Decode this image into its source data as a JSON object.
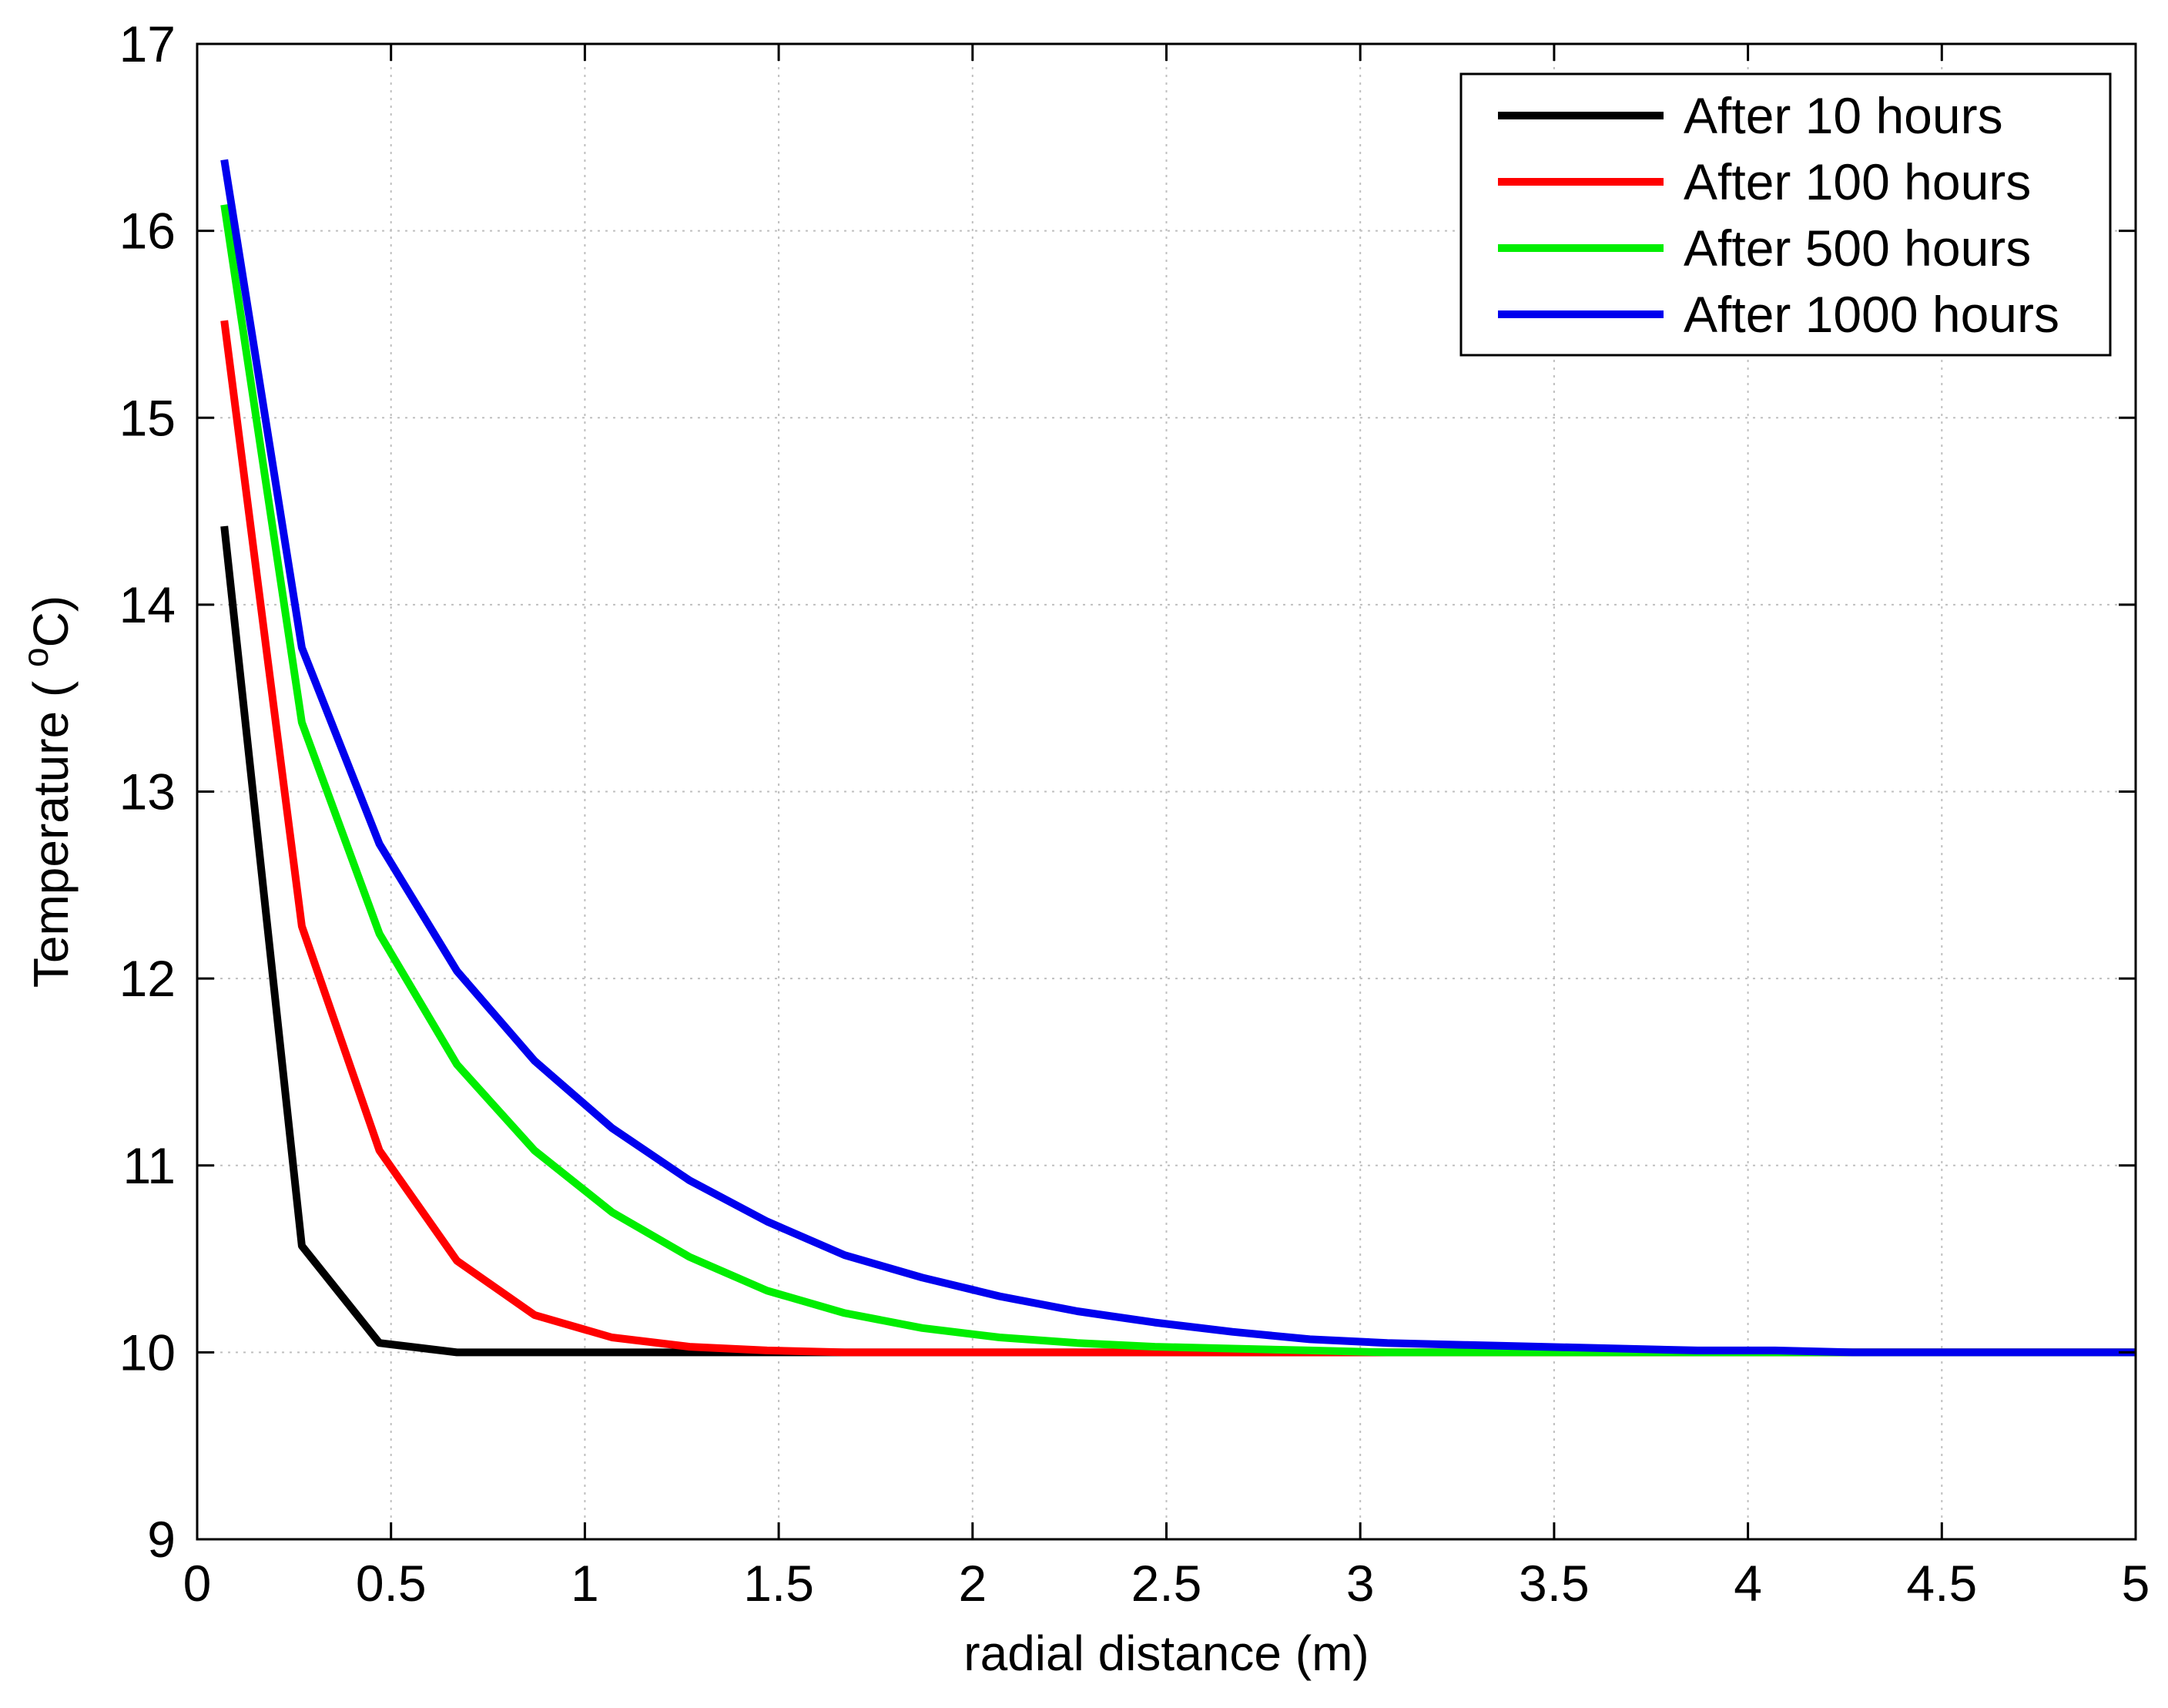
{
  "chart_data": {
    "type": "line",
    "title": "",
    "xlabel": "radial distance (m)",
    "ylabel": {
      "prefix": "Temperature ( ",
      "superscript": "o",
      "suffix": "C)"
    },
    "xlim": [
      0,
      5
    ],
    "ylim": [
      9,
      17
    ],
    "xticks": [
      0,
      0.5,
      1,
      1.5,
      2,
      2.5,
      3,
      3.5,
      4,
      4.5,
      5
    ],
    "xtick_labels": [
      "0",
      "0.5",
      "1",
      "1.5",
      "2",
      "2.5",
      "3",
      "3.5",
      "4",
      "4.5",
      "5"
    ],
    "yticks": [
      9,
      10,
      11,
      12,
      13,
      14,
      15,
      16,
      17
    ],
    "ytick_labels": [
      "9",
      "10",
      "11",
      "12",
      "13",
      "14",
      "15",
      "16",
      "17"
    ],
    "grid": true,
    "legend_position": "top-right",
    "x": [
      0.07,
      0.27,
      0.47,
      0.67,
      0.87,
      1.07,
      1.27,
      1.47,
      1.67,
      1.87,
      2.07,
      2.27,
      2.47,
      2.67,
      2.87,
      3.07,
      3.27,
      3.47,
      3.67,
      3.87,
      4.07,
      4.27,
      4.47,
      4.67,
      4.87,
      5.0
    ],
    "series": [
      {
        "name": "After 10 hours",
        "color": "#000000",
        "values": [
          14.42,
          10.57,
          10.05,
          10.0,
          10.0,
          10.0,
          10.0,
          10.0,
          10.0,
          10.0,
          10.0,
          10.0,
          10.0,
          10.0,
          10.0,
          10.0,
          10.0,
          10.0,
          10.0,
          10.0,
          10.0,
          10.0,
          10.0,
          10.0,
          10.0,
          10.0
        ]
      },
      {
        "name": "After 100 hours",
        "color": "#ff0000",
        "values": [
          15.52,
          12.28,
          11.08,
          10.49,
          10.2,
          10.08,
          10.03,
          10.01,
          10.0,
          10.0,
          10.0,
          10.0,
          10.0,
          10.0,
          10.0,
          10.0,
          10.0,
          10.0,
          10.0,
          10.0,
          10.0,
          10.0,
          10.0,
          10.0,
          10.0,
          10.0
        ]
      },
      {
        "name": "After 500 hours",
        "color": "#00ee00",
        "values": [
          16.14,
          13.37,
          12.24,
          11.54,
          11.08,
          10.75,
          10.51,
          10.33,
          10.21,
          10.13,
          10.08,
          10.05,
          10.03,
          10.02,
          10.01,
          10.0,
          10.0,
          10.0,
          10.0,
          10.0,
          10.0,
          10.0,
          10.0,
          10.0,
          10.0,
          10.0
        ]
      },
      {
        "name": "After 1000 hours",
        "color": "#0000ee",
        "values": [
          16.38,
          13.77,
          12.72,
          12.04,
          11.56,
          11.2,
          10.92,
          10.7,
          10.52,
          10.4,
          10.3,
          10.22,
          10.16,
          10.11,
          10.07,
          10.05,
          10.04,
          10.03,
          10.02,
          10.01,
          10.01,
          10.0,
          10.0,
          10.0,
          10.0,
          10.0
        ]
      }
    ]
  }
}
